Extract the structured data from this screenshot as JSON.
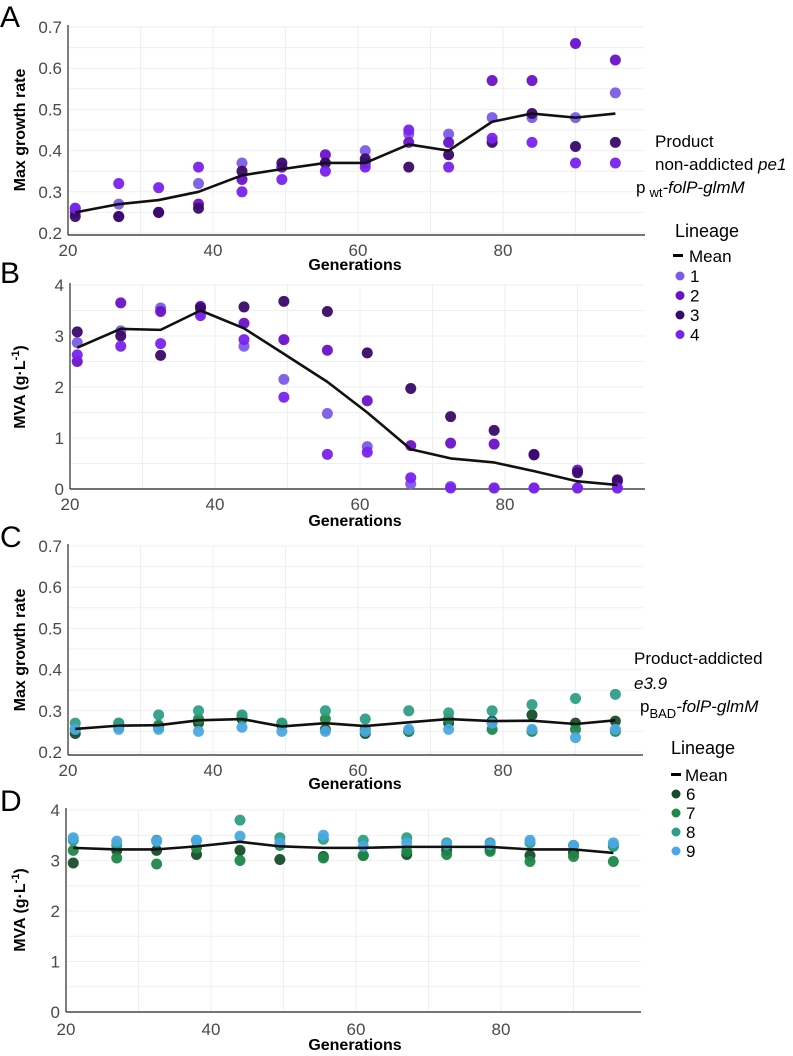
{
  "chart_data": [
    {
      "panel": "A",
      "type": "scatter",
      "xlabel": "Generations",
      "ylabel": "Max growth rate",
      "xlim": [
        20,
        97
      ],
      "ylim": [
        0.2,
        0.7
      ],
      "xticks": [
        "20",
        "40",
        "60",
        "80"
      ],
      "yticks": [
        "0.2",
        "0.3",
        "0.4",
        "0.5",
        "0.6",
        "0.7"
      ],
      "grid": true,
      "x": [
        21,
        27,
        32.5,
        38,
        44,
        49.5,
        55.5,
        61,
        67,
        72.5,
        78.5,
        84,
        90,
        95.5
      ],
      "series": [
        {
          "name": "1",
          "color": "#7b5ce8",
          "values": [
            0.26,
            0.27,
            0.25,
            0.32,
            0.37,
            0.36,
            0.37,
            0.4,
            0.44,
            0.44,
            0.48,
            0.48,
            0.48,
            0.54
          ]
        },
        {
          "name": "2",
          "color": "#6a12c8",
          "values": [
            0.25,
            0.24,
            0.25,
            0.27,
            0.33,
            0.36,
            0.39,
            0.37,
            0.42,
            0.42,
            0.57,
            0.57,
            0.66,
            0.62
          ]
        },
        {
          "name": "3",
          "color": "#3a0a6a",
          "values": [
            0.24,
            0.24,
            0.25,
            0.26,
            0.35,
            0.37,
            0.37,
            0.38,
            0.36,
            0.39,
            0.42,
            0.49,
            0.41,
            0.42
          ]
        },
        {
          "name": "4",
          "color": "#7a22ee",
          "values": [
            0.26,
            0.32,
            0.31,
            0.36,
            0.3,
            0.33,
            0.35,
            0.36,
            0.45,
            0.36,
            0.43,
            0.42,
            0.37,
            0.37
          ]
        }
      ],
      "mean": [
        0.25,
        0.27,
        0.28,
        0.3,
        0.34,
        0.355,
        0.37,
        0.37,
        0.415,
        0.4,
        0.47,
        0.49,
        0.48,
        0.49
      ]
    },
    {
      "panel": "B",
      "type": "scatter",
      "xlabel": "Generations",
      "ylabel": "MVA (g·L⁻¹)",
      "xlim": [
        20,
        97
      ],
      "ylim": [
        0,
        4
      ],
      "xticks": [
        "20",
        "40",
        "60",
        "80"
      ],
      "yticks": [
        "0",
        "1",
        "2",
        "3",
        "4"
      ],
      "grid": true,
      "x": [
        21,
        27,
        32.5,
        38,
        44,
        49.5,
        55.5,
        61,
        67,
        72.5,
        78.5,
        84,
        90,
        95.5
      ],
      "series": [
        {
          "name": "1",
          "color": "#7b5ce8",
          "values": [
            2.87,
            3.1,
            3.55,
            3.45,
            2.8,
            2.15,
            1.48,
            0.83,
            0.1,
            0.05,
            0.02,
            0.02,
            0.02,
            0.02
          ]
        },
        {
          "name": "2",
          "color": "#6a12c8",
          "values": [
            2.5,
            3.65,
            3.48,
            3.58,
            3.25,
            2.93,
            2.72,
            1.73,
            0.85,
            0.9,
            0.88,
            0.68,
            0.37,
            0.15
          ]
        },
        {
          "name": "3",
          "color": "#3a0a6a",
          "values": [
            3.08,
            3.0,
            2.62,
            3.55,
            3.57,
            3.68,
            3.48,
            2.67,
            1.97,
            1.42,
            1.15,
            0.67,
            0.32,
            0.18
          ]
        },
        {
          "name": "4",
          "color": "#7a22ee",
          "values": [
            2.63,
            2.8,
            2.85,
            3.4,
            2.93,
            1.8,
            0.68,
            0.72,
            0.22,
            0.02,
            0.02,
            0.02,
            0.02,
            0.02
          ]
        }
      ],
      "mean": [
        2.77,
        3.14,
        3.12,
        3.5,
        3.15,
        2.65,
        2.1,
        1.5,
        0.78,
        0.6,
        0.52,
        0.35,
        0.15,
        0.08
      ]
    },
    {
      "panel": "C",
      "type": "scatter",
      "xlabel": "Generations",
      "ylabel": "Max growth rate",
      "xlim": [
        20,
        97
      ],
      "ylim": [
        0.2,
        0.7
      ],
      "xticks": [
        "20",
        "40",
        "60",
        "80"
      ],
      "yticks": [
        "0.2",
        "0.3",
        "0.4",
        "0.5",
        "0.6",
        "0.7"
      ],
      "grid": true,
      "x": [
        21,
        27,
        32.5,
        38,
        44,
        49.5,
        55.5,
        61,
        67,
        72.5,
        78.5,
        84,
        90,
        95.5
      ],
      "series": [
        {
          "name": "6",
          "color": "#174d2a",
          "values": [
            0.245,
            0.26,
            0.26,
            0.27,
            0.28,
            0.265,
            0.255,
            0.245,
            0.25,
            0.27,
            0.275,
            0.29,
            0.27,
            0.275
          ]
        },
        {
          "name": "7",
          "color": "#1f8748",
          "values": [
            0.255,
            0.27,
            0.265,
            0.28,
            0.285,
            0.27,
            0.28,
            0.255,
            0.25,
            0.28,
            0.255,
            0.25,
            0.255,
            0.25
          ]
        },
        {
          "name": "8",
          "color": "#2e9e85",
          "values": [
            0.27,
            0.27,
            0.29,
            0.3,
            0.29,
            0.27,
            0.3,
            0.28,
            0.3,
            0.295,
            0.3,
            0.315,
            0.33,
            0.34
          ]
        },
        {
          "name": "9",
          "color": "#4aa9e2",
          "values": [
            0.255,
            0.255,
            0.255,
            0.25,
            0.26,
            0.25,
            0.25,
            0.25,
            0.255,
            0.255,
            0.27,
            0.255,
            0.235,
            0.255
          ]
        }
      ],
      "mean": [
        0.256,
        0.264,
        0.265,
        0.277,
        0.28,
        0.262,
        0.27,
        0.263,
        0.272,
        0.28,
        0.275,
        0.276,
        0.268,
        0.277
      ]
    },
    {
      "panel": "D",
      "type": "scatter",
      "xlabel": "Generations",
      "ylabel": "MVA (g·L⁻¹)",
      "xlim": [
        20,
        97
      ],
      "ylim": [
        0,
        4
      ],
      "xticks": [
        "20",
        "40",
        "60",
        "80"
      ],
      "yticks": [
        "0",
        "1",
        "2",
        "3",
        "4"
      ],
      "grid": true,
      "x": [
        21,
        27,
        32.5,
        38,
        44,
        49.5,
        55.5,
        61,
        67,
        72.5,
        78.5,
        84,
        90,
        95.5
      ],
      "series": [
        {
          "name": "6",
          "color": "#174d2a",
          "values": [
            2.95,
            3.2,
            3.2,
            3.12,
            3.2,
            3.02,
            3.08,
            3.1,
            3.12,
            3.2,
            3.22,
            3.1,
            3.15,
            3.3
          ]
        },
        {
          "name": "7",
          "color": "#1f8748",
          "values": [
            3.2,
            3.05,
            2.93,
            3.25,
            3.0,
            3.3,
            3.05,
            3.1,
            3.18,
            3.12,
            3.18,
            2.98,
            3.08,
            2.98
          ]
        },
        {
          "name": "8",
          "color": "#2e9e85",
          "values": [
            3.4,
            3.3,
            3.4,
            3.4,
            3.8,
            3.45,
            3.42,
            3.4,
            3.45,
            3.35,
            3.35,
            3.35,
            3.3,
            3.28
          ]
        },
        {
          "name": "9",
          "color": "#4aa9e2",
          "values": [
            3.45,
            3.38,
            3.38,
            3.4,
            3.48,
            3.35,
            3.5,
            3.28,
            3.35,
            3.32,
            3.32,
            3.4,
            3.3,
            3.35
          ]
        }
      ],
      "mean": [
        3.25,
        3.22,
        3.22,
        3.28,
        3.37,
        3.28,
        3.25,
        3.25,
        3.27,
        3.27,
        3.27,
        3.22,
        3.22,
        3.15
      ]
    }
  ],
  "panels": {
    "A": {
      "letter": "A",
      "ylabel": "Max growth rate",
      "xlabel": "Generations"
    },
    "B": {
      "letter": "B",
      "ylabel_main": "MVA (g·L",
      "ylabel_sup": "-1",
      "ylabel_end": ")",
      "xlabel": "Generations"
    },
    "C": {
      "letter": "C",
      "ylabel": "Max growth rate",
      "xlabel": "Generations"
    },
    "D": {
      "letter": "D",
      "ylabel_main": "MVA (g·L",
      "ylabel_sup": "-1",
      "ylabel_end": ")",
      "xlabel": "Generations"
    }
  },
  "legend_top": {
    "label_line1": "Product",
    "label_line2": "non-addicted ",
    "label_line2_italic": "pe1",
    "label_line3_p": "p",
    "label_line3_sub": "wt",
    "label_line3_italic": "-folP-glmM",
    "title": "Lineage",
    "mean_label": "Mean",
    "items": [
      {
        "label": "1",
        "color": "#7b5ce8"
      },
      {
        "label": "2",
        "color": "#6a12c8"
      },
      {
        "label": "3",
        "color": "#3a0a6a"
      },
      {
        "label": "4",
        "color": "#7a22ee"
      }
    ]
  },
  "legend_bottom": {
    "label_line1": "Product-addicted",
    "label_line2_italic": "e3.9",
    "label_line3_p": "p",
    "label_line3_sub": "BAD",
    "label_line3_italic": "-folP-glmM",
    "title": "Lineage",
    "mean_label": "Mean",
    "items": [
      {
        "label": "6",
        "color": "#174d2a"
      },
      {
        "label": "7",
        "color": "#1f8748"
      },
      {
        "label": "8",
        "color": "#2e9e85"
      },
      {
        "label": "9",
        "color": "#4aa9e2"
      }
    ]
  }
}
